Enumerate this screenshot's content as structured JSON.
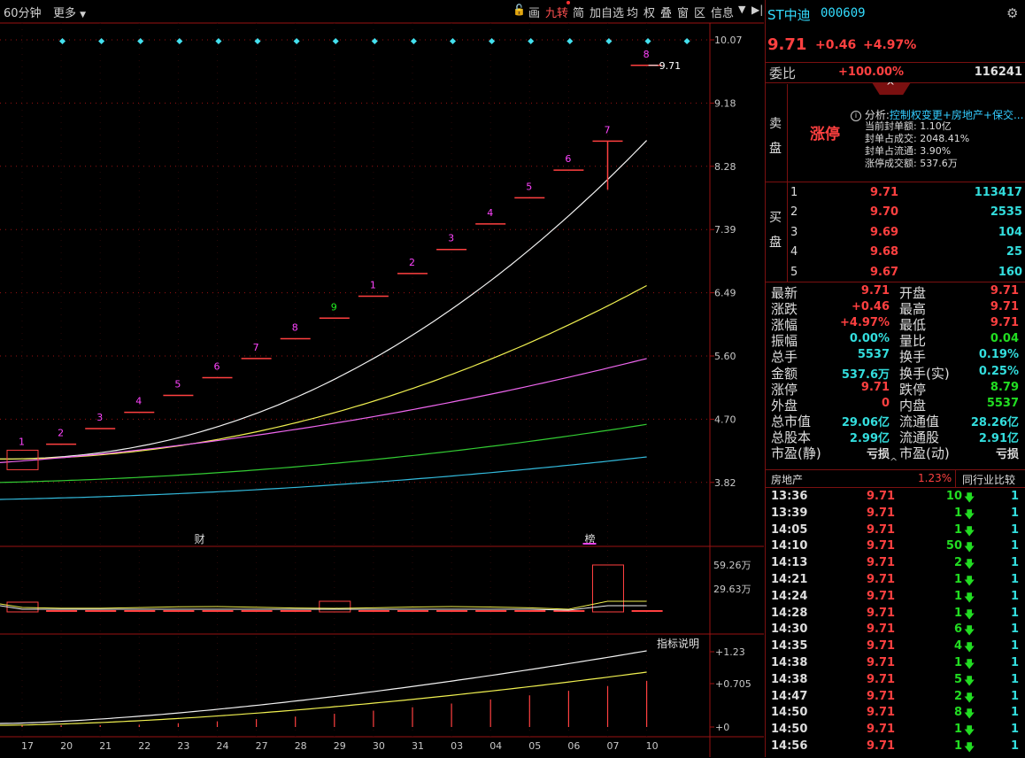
{
  "toolbar": {
    "period": "60分钟",
    "more": "更多",
    "tools": [
      "画",
      "九转",
      "简",
      "加自选",
      "均",
      "权",
      "叠",
      "窗",
      "区",
      "信息"
    ]
  },
  "stock": {
    "name": "ST中迪",
    "code": "000609",
    "price": "9.71",
    "change": "+0.46",
    "pct": "+4.97%"
  },
  "weibi": {
    "label": "委比",
    "value": "+100.00%",
    "vol": "116241"
  },
  "sell_label": [
    "卖",
    "盘"
  ],
  "buy_label": [
    "买",
    "盘"
  ],
  "limit": {
    "title": "涨停",
    "analysis_label": "分析:",
    "analysis_text": "控制权变更+房地产+保交...",
    "lines": [
      "当前封单额: 1.10亿",
      "封单占成交: 2048.41%",
      "封单占流通: 3.90%",
      "涨停成交额: 537.6万"
    ]
  },
  "bids": [
    {
      "lv": "1",
      "price": "9.71",
      "vol": "113417"
    },
    {
      "lv": "2",
      "price": "9.70",
      "vol": "2535"
    },
    {
      "lv": "3",
      "price": "9.69",
      "vol": "104"
    },
    {
      "lv": "4",
      "price": "9.68",
      "vol": "25"
    },
    {
      "lv": "5",
      "price": "9.67",
      "vol": "160"
    }
  ],
  "quote": [
    {
      "l1": "最新",
      "v1": "9.71",
      "c1": "red",
      "l2": "开盘",
      "v2": "9.71",
      "c2": "red"
    },
    {
      "l1": "涨跌",
      "v1": "+0.46",
      "c1": "red",
      "l2": "最高",
      "v2": "9.71",
      "c2": "red"
    },
    {
      "l1": "涨幅",
      "v1": "+4.97%",
      "c1": "red",
      "l2": "最低",
      "v2": "9.71",
      "c2": "red"
    },
    {
      "l1": "振幅",
      "v1": "0.00%",
      "c1": "cyan",
      "l2": "量比",
      "v2": "0.04",
      "c2": "green"
    },
    {
      "l1": "总手",
      "v1": "5537",
      "c1": "cyan",
      "l2": "换手",
      "v2": "0.19%",
      "c2": "cyan"
    },
    {
      "l1": "金额",
      "v1": "537.6万",
      "c1": "cyan",
      "l2": "换手(实)",
      "v2": "0.25%",
      "c2": "cyan"
    },
    {
      "l1": "涨停",
      "v1": "9.71",
      "c1": "red",
      "l2": "跌停",
      "v2": "8.79",
      "c2": "green"
    },
    {
      "l1": "外盘",
      "v1": "0",
      "c1": "red",
      "l2": "内盘",
      "v2": "5537",
      "c2": "green"
    },
    {
      "l1": "总市值",
      "v1": "29.06亿",
      "c1": "cyan",
      "l2": "流通值",
      "v2": "28.26亿",
      "c2": "cyan"
    },
    {
      "l1": "总股本",
      "v1": "2.99亿",
      "c1": "cyan",
      "l2": "流通股",
      "v2": "2.91亿",
      "c2": "cyan"
    },
    {
      "l1": "市盈(静)",
      "v1": "亏损",
      "c1": "white",
      "l2": "市盈(动)",
      "v2": "亏损",
      "c2": "white"
    }
  ],
  "industry": {
    "name": "房地产",
    "pct": "1.23%",
    "compare": "同行业比较"
  },
  "ticks": [
    {
      "t": "13:36",
      "p": "9.71",
      "v": "10",
      "n": "1"
    },
    {
      "t": "13:39",
      "p": "9.71",
      "v": "1",
      "n": "1"
    },
    {
      "t": "14:05",
      "p": "9.71",
      "v": "1",
      "n": "1"
    },
    {
      "t": "14:10",
      "p": "9.71",
      "v": "50",
      "n": "1"
    },
    {
      "t": "14:13",
      "p": "9.71",
      "v": "2",
      "n": "1"
    },
    {
      "t": "14:21",
      "p": "9.71",
      "v": "1",
      "n": "1"
    },
    {
      "t": "14:24",
      "p": "9.71",
      "v": "1",
      "n": "1"
    },
    {
      "t": "14:28",
      "p": "9.71",
      "v": "1",
      "n": "1"
    },
    {
      "t": "14:30",
      "p": "9.71",
      "v": "6",
      "n": "1"
    },
    {
      "t": "14:35",
      "p": "9.71",
      "v": "4",
      "n": "1"
    },
    {
      "t": "14:38",
      "p": "9.71",
      "v": "1",
      "n": "1"
    },
    {
      "t": "14:38",
      "p": "9.71",
      "v": "5",
      "n": "1"
    },
    {
      "t": "14:47",
      "p": "9.71",
      "v": "2",
      "n": "1"
    },
    {
      "t": "14:50",
      "p": "9.71",
      "v": "8",
      "n": "1"
    },
    {
      "t": "14:50",
      "p": "9.71",
      "v": "1",
      "n": "1"
    },
    {
      "t": "14:56",
      "p": "9.71",
      "v": "1",
      "n": "1"
    }
  ],
  "chart": {
    "price_axis": [
      "10.07",
      "9.18",
      "8.28",
      "7.39",
      "6.49",
      "5.60",
      "4.70",
      "3.82"
    ],
    "vol_axis": [
      "59.26万",
      "29.63万"
    ],
    "ind_axis": [
      "+1.23",
      "+0.705",
      "+0"
    ],
    "indicator_btn": "指标说明",
    "last_label": "9.71",
    "dates": [
      "17",
      "20",
      "21",
      "22",
      "23",
      "24",
      "27",
      "28",
      "29",
      "30",
      "31",
      "03",
      "04",
      "05",
      "06",
      "07",
      "10"
    ],
    "markers": [
      {
        "text": "财",
        "idx": 5
      },
      {
        "text": "榜",
        "idx": 15
      }
    ],
    "nine": [
      {
        "i": 0,
        "n": "1",
        "c": "#ff44ff"
      },
      {
        "i": 1,
        "n": "2",
        "c": "#ff44ff"
      },
      {
        "i": 2,
        "n": "3",
        "c": "#ff44ff"
      },
      {
        "i": 3,
        "n": "4",
        "c": "#ff44ff"
      },
      {
        "i": 4,
        "n": "5",
        "c": "#ff44ff"
      },
      {
        "i": 5,
        "n": "6",
        "c": "#ff44ff"
      },
      {
        "i": 6,
        "n": "7",
        "c": "#ff44ff"
      },
      {
        "i": 7,
        "n": "8",
        "c": "#ff44ff"
      },
      {
        "i": 8,
        "n": "9",
        "c": "#22ee22"
      },
      {
        "i": 9,
        "n": "1",
        "c": "#ff44ff"
      },
      {
        "i": 10,
        "n": "2",
        "c": "#ff44ff"
      },
      {
        "i": 11,
        "n": "3",
        "c": "#ff44ff"
      },
      {
        "i": 12,
        "n": "4",
        "c": "#ff44ff"
      },
      {
        "i": 13,
        "n": "5",
        "c": "#ff44ff"
      },
      {
        "i": 14,
        "n": "6",
        "c": "#ff44ff"
      },
      {
        "i": 15,
        "n": "7",
        "c": "#ff44ff"
      },
      {
        "i": 16,
        "n": "8",
        "c": "#ff44ff"
      }
    ],
    "closes": [
      4.15,
      4.36,
      4.58,
      4.81,
      5.05,
      5.3,
      5.57,
      5.85,
      6.14,
      6.45,
      6.77,
      7.11,
      7.47,
      7.84,
      8.23,
      8.64,
      9.71
    ]
  }
}
